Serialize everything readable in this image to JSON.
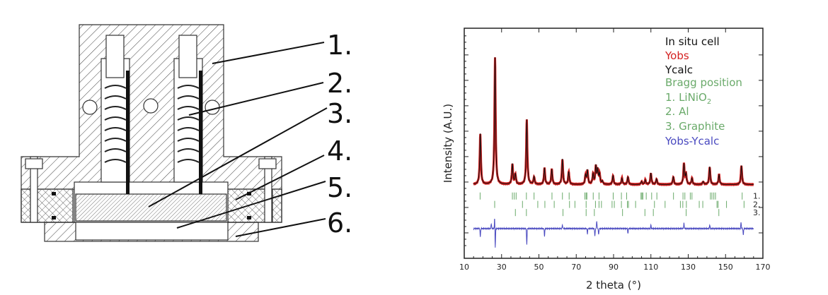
{
  "diagram": {
    "labels": [
      "1.",
      "2.",
      "3.",
      "4.",
      "5.",
      "6."
    ]
  },
  "chart_data": {
    "type": "line",
    "title": "",
    "xlabel": "2 theta (°)",
    "ylabel": "Intensity (A.U.)",
    "xlim": [
      10,
      170
    ],
    "ylim": [
      0,
      9.05
    ],
    "xticks": [
      10,
      30,
      50,
      70,
      90,
      110,
      130,
      150,
      170
    ],
    "yticks_minor_unlabeled": [
      1,
      2,
      3,
      4,
      5,
      6,
      7,
      8
    ],
    "grid": false,
    "legend": {
      "placement": "top-right",
      "title": "In situ cell",
      "entries": [
        {
          "text": "Yobs",
          "color": "#d42020"
        },
        {
          "text": "Ycalc",
          "color": "#111111"
        },
        {
          "text": "Bragg position",
          "color": "#6aaa6a"
        },
        {
          "text": "1. LiNiO",
          "sub": "2",
          "color": "#6aaa6a"
        },
        {
          "text": "2. Al",
          "color": "#6aaa6a"
        },
        {
          "text": "3. Graphite",
          "color": "#6aaa6a"
        },
        {
          "text": "Yobs-Ycalc",
          "color": "#4a4ac0"
        }
      ]
    },
    "pattern_range": [
      15,
      165
    ],
    "background_level": 2.9,
    "peaks": [
      [
        18.6,
        2.0
      ],
      [
        26.5,
        5.0
      ],
      [
        35.8,
        0.8
      ],
      [
        37.4,
        0.4
      ],
      [
        43.5,
        2.55
      ],
      [
        47.4,
        0.3
      ],
      [
        53.0,
        0.65
      ],
      [
        56.9,
        0.6
      ],
      [
        62.6,
        1.0
      ],
      [
        66.0,
        0.5
      ],
      [
        75.0,
        0.35
      ],
      [
        76.0,
        0.55
      ],
      [
        79.0,
        0.4
      ],
      [
        80.5,
        0.7
      ],
      [
        81.5,
        0.55
      ],
      [
        82.5,
        0.4
      ],
      [
        84.0,
        0.12
      ],
      [
        89.7,
        0.35
      ],
      [
        94.5,
        0.25
      ],
      [
        97.7,
        0.3
      ],
      [
        105.0,
        0.12
      ],
      [
        107.0,
        0.18
      ],
      [
        110.0,
        0.45
      ],
      [
        113.0,
        0.22
      ],
      [
        122.0,
        0.3
      ],
      [
        127.7,
        0.8
      ],
      [
        128.8,
        0.4
      ],
      [
        132.0,
        0.25
      ],
      [
        138.0,
        0.12
      ],
      [
        141.5,
        0.7
      ],
      [
        146.5,
        0.4
      ],
      [
        158.5,
        0.75
      ]
    ],
    "series": [
      {
        "name": "Yobs",
        "color": "#d42020"
      },
      {
        "name": "Ycalc",
        "color": "#111111"
      },
      {
        "name": "Yobs-Ycalc",
        "color": "#4a4ac0",
        "offset": 1.17,
        "features": [
          [
            18.6,
            -0.33
          ],
          [
            24.5,
            0.2
          ],
          [
            26.3,
            0.45
          ],
          [
            26.6,
            -0.8
          ],
          [
            43.5,
            -0.63
          ],
          [
            53.0,
            -0.3
          ],
          [
            62.6,
            0.15
          ],
          [
            76.0,
            -0.2
          ],
          [
            80.0,
            -0.3
          ],
          [
            81.0,
            0.3
          ],
          [
            82.0,
            -0.25
          ],
          [
            97.7,
            -0.2
          ],
          [
            110,
            0.15
          ],
          [
            127.7,
            0.2
          ],
          [
            141.5,
            0.15
          ],
          [
            158.3,
            0.25
          ],
          [
            159.5,
            -0.25
          ]
        ]
      }
    ],
    "bragg_positions": [
      {
        "phase": "1.",
        "color": "#6aaa6a",
        "level": 2.45,
        "x": [
          18.5,
          35.8,
          36.8,
          37.8,
          43.3,
          47.4,
          57.0,
          62.6,
          66.2,
          74.6,
          75.3,
          75.7,
          79.1,
          82.2,
          89.8,
          94.2,
          97.0,
          104.7,
          105.2,
          105.7,
          107.5,
          110.4,
          113.2,
          122.1,
          127.2,
          128.2,
          131.1,
          132.0,
          141.9,
          142.7,
          143.7,
          144.6,
          158.9
        ]
      },
      {
        "phase": "2.",
        "color": "#6aaa6a",
        "level": 2.12,
        "x": [
          26.3,
          41.2,
          49.4,
          53.2,
          58.2,
          66.4,
          69.3,
          75.3,
          80.3,
          82.2,
          83.5,
          89.2,
          90.4,
          94.2,
          97.4,
          98.0,
          101.8,
          111.9,
          117.6,
          125.8,
          127.1,
          129.0,
          135.9,
          137.8,
          145.4,
          146.0,
          150.5,
          159.9
        ]
      },
      {
        "phase": "3.",
        "color": "#6aaa6a",
        "level": 1.8,
        "x": [
          37.4,
          43.3,
          62.9,
          75.3,
          79.7,
          94.8,
          106.8,
          111.3,
          128.9,
          146.4
        ]
      }
    ]
  }
}
